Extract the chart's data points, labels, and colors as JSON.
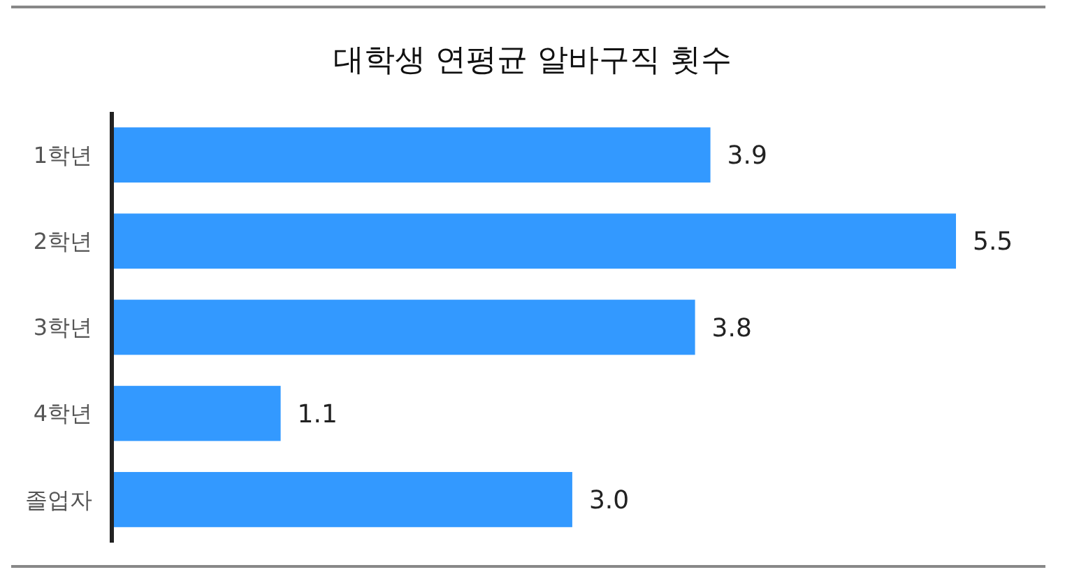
{
  "chart_data": {
    "type": "bar",
    "orientation": "horizontal",
    "title": "대학생 연평균 알바구직 횟수",
    "categories": [
      "1학년",
      "2학년",
      "3학년",
      "4학년",
      "졸업자"
    ],
    "values": [
      3.9,
      5.5,
      3.8,
      1.1,
      3.0
    ],
    "value_labels": [
      "3.9",
      "5.5",
      "3.8",
      "1.1",
      "3.0"
    ],
    "color": "#3399ff"
  }
}
